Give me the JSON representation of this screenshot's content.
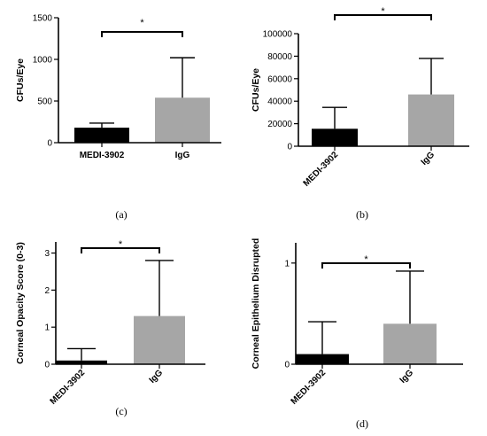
{
  "chart_data": [
    {
      "type": "bar",
      "panel_label": "(a)",
      "categories": [
        "MEDI-3902",
        "IgG"
      ],
      "values": [
        180,
        540
      ],
      "error_upper": [
        235,
        1020
      ],
      "bar_colors": [
        "#000000",
        "#a6a6a6"
      ],
      "ylabel": "CFUs/Eye",
      "xlabel": "",
      "ylim": [
        0,
        1500
      ],
      "yticks": [
        0,
        500,
        1000,
        1500
      ],
      "ytick_labels": [
        "0",
        "500",
        "1000",
        "1500"
      ],
      "category_label_rotation": "none",
      "significance": {
        "label": "*",
        "between": [
          "MEDI-3902",
          "IgG"
        ]
      },
      "grid": false
    },
    {
      "type": "bar",
      "panel_label": "(b)",
      "categories": [
        "MEDI-3902",
        "IgG"
      ],
      "values": [
        15500,
        46000
      ],
      "error_upper": [
        34500,
        78000
      ],
      "bar_colors": [
        "#000000",
        "#a6a6a6"
      ],
      "ylabel": "CFUs/Eye",
      "xlabel": "",
      "ylim": [
        0,
        100000
      ],
      "yticks": [
        0,
        20000,
        40000,
        60000,
        80000,
        100000
      ],
      "ytick_labels": [
        "0",
        "20000",
        "40000",
        "60000",
        "80000",
        "100000"
      ],
      "category_label_rotation": "angled",
      "significance": {
        "label": "*",
        "between": [
          "MEDI-3902",
          "IgG"
        ]
      },
      "grid": false
    },
    {
      "type": "bar",
      "panel_label": "(c)",
      "categories": [
        "MEDI-3902",
        "IgG"
      ],
      "values": [
        0.1,
        1.3
      ],
      "error_upper": [
        0.42,
        2.8
      ],
      "bar_colors": [
        "#000000",
        "#a6a6a6"
      ],
      "ylabel": "Corneal Opacity Score  (0-3)",
      "xlabel": "",
      "ylim": [
        0,
        3.3
      ],
      "yticks": [
        0,
        1,
        2,
        3
      ],
      "ytick_labels": [
        "0",
        "1",
        "2",
        "3"
      ],
      "category_label_rotation": "angled",
      "significance": {
        "label": "*",
        "between": [
          "MEDI-3902",
          "IgG"
        ]
      },
      "grid": false
    },
    {
      "type": "bar",
      "panel_label": "(d)",
      "categories": [
        "MEDI-3902",
        "IgG"
      ],
      "values": [
        0.1,
        0.4
      ],
      "error_upper": [
        0.42,
        0.92
      ],
      "bar_colors": [
        "#000000",
        "#a6a6a6"
      ],
      "ylabel": "Corneal Epithelium Disrupted",
      "xlabel": "",
      "ylim": [
        0,
        1.2
      ],
      "yticks": [
        0,
        1
      ],
      "ytick_labels": [
        "0",
        "1"
      ],
      "category_label_rotation": "angled",
      "significance": {
        "label": "*",
        "between": [
          "MEDI-3902",
          "IgG"
        ]
      },
      "grid": false
    }
  ]
}
